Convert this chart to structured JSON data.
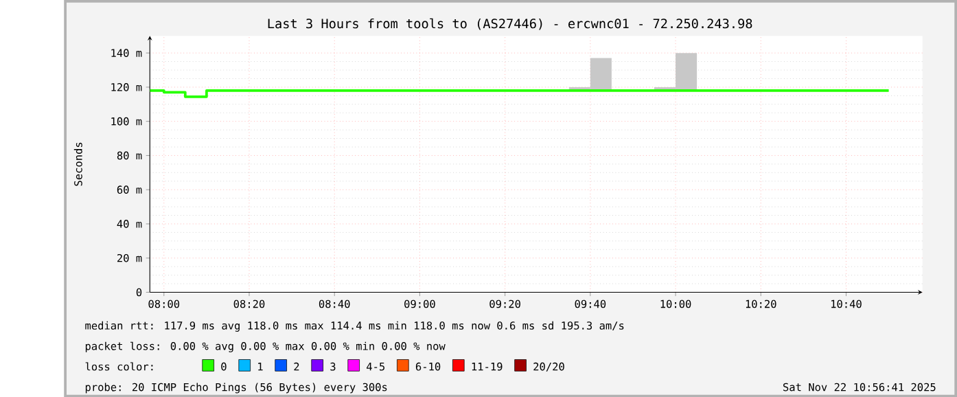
{
  "chart_data": {
    "type": "step",
    "title": "Last 3 Hours from tools to (AS27446) - ercwnc01 - 72.250.243.98",
    "ylabel": "Seconds",
    "xlim": [
      7.945,
      10.965
    ],
    "xticks": [
      {
        "value": 8,
        "label": "08:00"
      },
      {
        "value": 8.3333,
        "label": "08:20"
      },
      {
        "value": 8.6667,
        "label": "08:40"
      },
      {
        "value": 9,
        "label": "09:00"
      },
      {
        "value": 9.3333,
        "label": "09:20"
      },
      {
        "value": 9.6667,
        "label": "09:40"
      },
      {
        "value": 10,
        "label": "10:00"
      },
      {
        "value": 10.3333,
        "label": "10:20"
      },
      {
        "value": 10.6667,
        "label": "10:40"
      }
    ],
    "ylim": [
      0,
      150
    ],
    "yticks": [
      0,
      {
        "value": 20,
        "label": "20 m"
      },
      {
        "value": 40,
        "label": "40 m"
      },
      {
        "value": 60,
        "label": "60 m"
      },
      {
        "value": 80,
        "label": "80 m"
      },
      {
        "value": 100,
        "label": "100 m"
      },
      {
        "value": 120,
        "label": "120 m"
      },
      {
        "value": 140,
        "label": "140 m"
      }
    ],
    "grid": true,
    "legend": "bottom",
    "legend_title": "loss color:",
    "series": [
      {
        "type": "bar",
        "color": "#c8c8c8",
        "x": [
          9.625,
          9.7083,
          9.9583,
          10.0417
        ],
        "base": [
          118,
          118,
          118,
          118
        ],
        "values": [
          2,
          19,
          2,
          22
        ]
      },
      {
        "name": "0",
        "color": "#26ff00",
        "x": [
          7.945,
          8.0,
          8.0833,
          8.1667,
          10.8333
        ],
        "values": [
          118,
          117,
          114.4,
          118,
          118
        ]
      },
      {
        "name": "1",
        "color": "#00b8ff"
      },
      {
        "name": "2",
        "color": "#0059ff"
      },
      {
        "name": "3",
        "color": "#7e00ff"
      },
      {
        "name": "4-5",
        "color": "#ff00ff"
      },
      {
        "name": "6-10",
        "color": "#ff5500"
      },
      {
        "name": "11-19",
        "color": "#ff0000"
      },
      {
        "name": "20/20",
        "color": "#a10000"
      }
    ],
    "annotations": [
      "median rtt:  117.9 ms avg  118.0 ms max  114.4 ms min  118.0 ms now  0.6 ms sd  195.3  am/s",
      "packet loss: 0.00 % avg  0.00 % max  0.00 % min  0.00 % now",
      "probe:  20 ICMP Echo Pings (56 Bytes) every 300s",
      "Sat Nov 22 10:56:41 2025"
    ]
  }
}
